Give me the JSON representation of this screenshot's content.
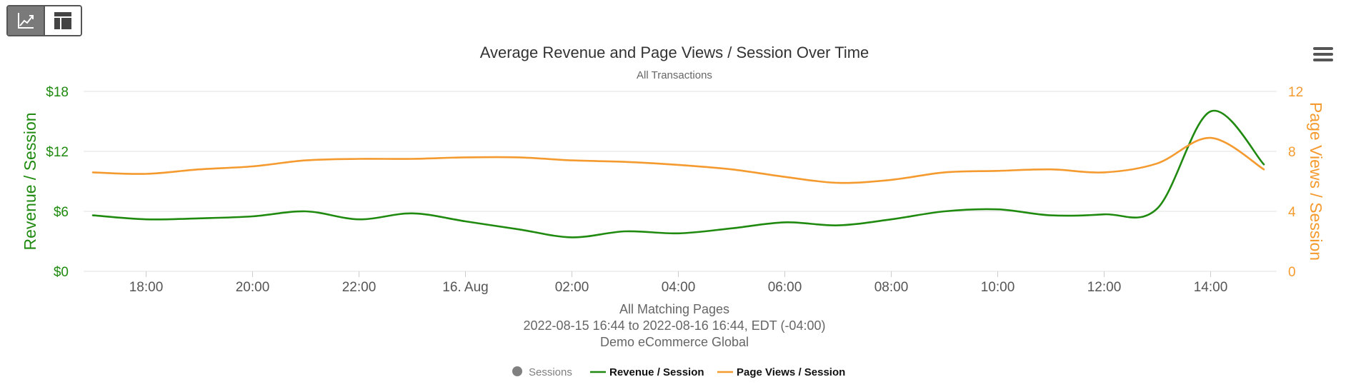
{
  "toolbar": {
    "chart_view_icon": "line-chart-icon",
    "table_view_icon": "table-layout-icon",
    "menu_icon": "hamburger-menu-icon"
  },
  "colors": {
    "revenue": "#1f8a0f",
    "pageviews": "#f49a2e",
    "sessions": "#808080",
    "grid": "#e6e6e6",
    "text": "#333333",
    "muted": "#666666"
  },
  "chart_data": {
    "type": "line",
    "title": "Average Revenue and Page Views / Session Over Time",
    "subtitle": "All Transactions",
    "footer_lines": [
      "All Matching Pages",
      "2022-08-15 16:44 to 2022-08-16 16:44, EDT (-04:00)",
      "Demo eCommerce Global"
    ],
    "x_ticks": [
      "18:00",
      "20:00",
      "22:00",
      "16. Aug",
      "02:00",
      "04:00",
      "06:00",
      "08:00",
      "10:00",
      "12:00",
      "14:00"
    ],
    "x": [
      "2022-08-15 17:00",
      "2022-08-15 18:00",
      "2022-08-15 19:00",
      "2022-08-15 20:00",
      "2022-08-15 21:00",
      "2022-08-15 22:00",
      "2022-08-15 23:00",
      "2022-08-16 00:00",
      "2022-08-16 01:00",
      "2022-08-16 02:00",
      "2022-08-16 03:00",
      "2022-08-16 04:00",
      "2022-08-16 05:00",
      "2022-08-16 06:00",
      "2022-08-16 07:00",
      "2022-08-16 08:00",
      "2022-08-16 09:00",
      "2022-08-16 10:00",
      "2022-08-16 11:00",
      "2022-08-16 12:00",
      "2022-08-16 13:00",
      "2022-08-16 14:00",
      "2022-08-16 15:00"
    ],
    "y_left": {
      "label": "Revenue / Session",
      "ticks": [
        "$0",
        "$6",
        "$12",
        "$18"
      ],
      "range": [
        0,
        18
      ]
    },
    "y_right": {
      "label": "Page Views / Session",
      "ticks": [
        "0",
        "4",
        "8",
        "12"
      ],
      "range": [
        0,
        12
      ]
    },
    "grid": true,
    "legend_position": "bottom-center",
    "legend": [
      {
        "name": "Sessions",
        "style": "marker"
      },
      {
        "name": "Revenue / Session",
        "style": "line"
      },
      {
        "name": "Page Views / Session",
        "style": "line"
      }
    ],
    "series": [
      {
        "name": "Revenue / Session",
        "axis": "left",
        "values": [
          5.6,
          5.2,
          5.3,
          5.5,
          6.0,
          5.2,
          5.8,
          5.0,
          4.2,
          3.4,
          4.0,
          3.8,
          4.3,
          4.9,
          4.6,
          5.2,
          6.0,
          6.2,
          5.6,
          5.7,
          6.3,
          16.0,
          10.7
        ]
      },
      {
        "name": "Page Views / Session",
        "axis": "right",
        "values": [
          6.6,
          6.5,
          6.8,
          7.0,
          7.4,
          7.5,
          7.5,
          7.6,
          7.6,
          7.4,
          7.3,
          7.1,
          6.8,
          6.3,
          5.9,
          6.1,
          6.6,
          6.7,
          6.8,
          6.6,
          7.2,
          8.9,
          6.8
        ]
      }
    ]
  }
}
